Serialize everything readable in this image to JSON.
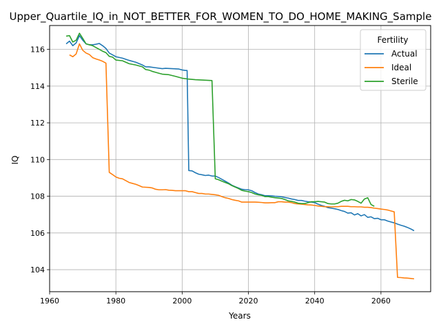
{
  "chart_data": {
    "type": "line",
    "title": "Upper_Quartile_IQ_in_NOT_BETTER_FOR_WOMEN_TO_DO_HOME_MAKING_Sample",
    "xlabel": "Years",
    "ylabel": "IQ",
    "xlim": [
      1960,
      2075
    ],
    "ylim": [
      102.8,
      117.3
    ],
    "xticks": [
      "1960",
      "1980",
      "2000",
      "2020",
      "2040",
      "2060"
    ],
    "yticks": [
      "104",
      "106",
      "108",
      "110",
      "112",
      "114",
      "116"
    ],
    "grid": true,
    "legend": {
      "title": "Fertility",
      "placement": "top-right"
    },
    "series": [
      {
        "name": "Actual",
        "color": "#1f77b4",
        "points": [
          [
            1965,
            116.3
          ],
          [
            1966,
            116.45
          ],
          [
            1967,
            116.2
          ],
          [
            1968,
            116.35
          ],
          [
            1969,
            116.75
          ],
          [
            1970,
            116.5
          ],
          [
            1971,
            116.3
          ],
          [
            1972,
            116.25
          ],
          [
            1973,
            116.25
          ],
          [
            1974,
            116.28
          ],
          [
            1975,
            116.32
          ],
          [
            1976,
            116.2
          ],
          [
            1977,
            116.05
          ],
          [
            1978,
            115.8
          ],
          [
            1979,
            115.7
          ],
          [
            1980,
            115.6
          ],
          [
            1982,
            115.52
          ],
          [
            1984,
            115.4
          ],
          [
            1986,
            115.3
          ],
          [
            1988,
            115.15
          ],
          [
            1989,
            115.05
          ],
          [
            1990,
            115.05
          ],
          [
            1992,
            115.0
          ],
          [
            1994,
            114.95
          ],
          [
            1995,
            114.97
          ],
          [
            1997,
            114.95
          ],
          [
            1999,
            114.93
          ],
          [
            2000,
            114.88
          ],
          [
            2001,
            114.85
          ],
          [
            2001.5,
            114.85
          ],
          [
            2002,
            109.4
          ],
          [
            2003,
            109.38
          ],
          [
            2004,
            109.28
          ],
          [
            2005,
            109.2
          ],
          [
            2006,
            109.17
          ],
          [
            2007,
            109.13
          ],
          [
            2008,
            109.15
          ],
          [
            2009,
            109.1
          ],
          [
            2010,
            109.1
          ],
          [
            2011,
            109.02
          ],
          [
            2012,
            108.92
          ],
          [
            2013,
            108.82
          ],
          [
            2014,
            108.72
          ],
          [
            2015,
            108.6
          ],
          [
            2016,
            108.52
          ],
          [
            2017,
            108.45
          ],
          [
            2018,
            108.38
          ],
          [
            2019,
            108.36
          ],
          [
            2020,
            108.35
          ],
          [
            2021,
            108.3
          ],
          [
            2022,
            108.2
          ],
          [
            2023,
            108.12
          ],
          [
            2024,
            108.08
          ],
          [
            2025,
            108.03
          ],
          [
            2026,
            108.03
          ],
          [
            2027,
            108.02
          ],
          [
            2028,
            108.0
          ],
          [
            2029,
            107.99
          ],
          [
            2030,
            107.97
          ],
          [
            2031,
            107.93
          ],
          [
            2032,
            107.9
          ],
          [
            2033,
            107.85
          ],
          [
            2034,
            107.82
          ],
          [
            2035,
            107.77
          ],
          [
            2036,
            107.77
          ],
          [
            2037,
            107.73
          ],
          [
            2038,
            107.7
          ],
          [
            2039,
            107.68
          ],
          [
            2040,
            107.65
          ],
          [
            2041,
            107.57
          ],
          [
            2042,
            107.5
          ],
          [
            2043,
            107.45
          ],
          [
            2044,
            107.38
          ],
          [
            2045,
            107.35
          ],
          [
            2046,
            107.32
          ],
          [
            2047,
            107.28
          ],
          [
            2048,
            107.22
          ],
          [
            2049,
            107.17
          ],
          [
            2050,
            107.08
          ],
          [
            2051,
            107.1
          ],
          [
            2052,
            106.98
          ],
          [
            2053,
            107.05
          ],
          [
            2054,
            106.93
          ],
          [
            2055,
            107.0
          ],
          [
            2056,
            106.85
          ],
          [
            2057,
            106.88
          ],
          [
            2058,
            106.78
          ],
          [
            2059,
            106.8
          ],
          [
            2060,
            106.72
          ],
          [
            2061,
            106.72
          ],
          [
            2062,
            106.65
          ],
          [
            2063,
            106.6
          ],
          [
            2064,
            106.55
          ],
          [
            2065,
            106.48
          ],
          [
            2066,
            106.42
          ],
          [
            2067,
            106.37
          ],
          [
            2068,
            106.3
          ],
          [
            2069,
            106.22
          ],
          [
            2070,
            106.12
          ]
        ]
      },
      {
        "name": "Ideal",
        "color": "#ff7f0e",
        "points": [
          [
            1966,
            115.7
          ],
          [
            1967,
            115.6
          ],
          [
            1968,
            115.75
          ],
          [
            1969,
            116.3
          ],
          [
            1970,
            115.95
          ],
          [
            1971,
            115.8
          ],
          [
            1972,
            115.72
          ],
          [
            1973,
            115.55
          ],
          [
            1974,
            115.48
          ],
          [
            1975,
            115.42
          ],
          [
            1976,
            115.35
          ],
          [
            1977,
            115.25
          ],
          [
            1978,
            109.3
          ],
          [
            1979,
            109.18
          ],
          [
            1980,
            109.05
          ],
          [
            1981,
            108.98
          ],
          [
            1982,
            108.95
          ],
          [
            1983,
            108.85
          ],
          [
            1984,
            108.75
          ],
          [
            1985,
            108.7
          ],
          [
            1986,
            108.65
          ],
          [
            1987,
            108.58
          ],
          [
            1988,
            108.5
          ],
          [
            1990,
            108.48
          ],
          [
            1991,
            108.45
          ],
          [
            1992,
            108.38
          ],
          [
            1993,
            108.35
          ],
          [
            1994,
            108.35
          ],
          [
            1995,
            108.36
          ],
          [
            1996,
            108.33
          ],
          [
            1997,
            108.32
          ],
          [
            1998,
            108.3
          ],
          [
            1999,
            108.3
          ],
          [
            2000,
            108.3
          ],
          [
            2001,
            108.3
          ],
          [
            2002,
            108.25
          ],
          [
            2003,
            108.25
          ],
          [
            2004,
            108.2
          ],
          [
            2005,
            108.15
          ],
          [
            2006,
            108.15
          ],
          [
            2007,
            108.12
          ],
          [
            2008,
            108.12
          ],
          [
            2009,
            108.1
          ],
          [
            2010,
            108.08
          ],
          [
            2011,
            108.05
          ],
          [
            2012,
            107.98
          ],
          [
            2013,
            107.92
          ],
          [
            2014,
            107.88
          ],
          [
            2015,
            107.82
          ],
          [
            2016,
            107.78
          ],
          [
            2017,
            107.75
          ],
          [
            2018,
            107.68
          ],
          [
            2019,
            107.68
          ],
          [
            2020,
            107.68
          ],
          [
            2021,
            107.68
          ],
          [
            2022,
            107.68
          ],
          [
            2023,
            107.67
          ],
          [
            2024,
            107.66
          ],
          [
            2025,
            107.64
          ],
          [
            2026,
            107.64
          ],
          [
            2027,
            107.65
          ],
          [
            2028,
            107.65
          ],
          [
            2029,
            107.7
          ],
          [
            2030,
            107.7
          ],
          [
            2031,
            107.68
          ],
          [
            2032,
            107.68
          ],
          [
            2033,
            107.65
          ],
          [
            2034,
            107.6
          ],
          [
            2035,
            107.58
          ],
          [
            2036,
            107.57
          ],
          [
            2037,
            107.55
          ],
          [
            2038,
            107.53
          ],
          [
            2039,
            107.52
          ],
          [
            2040,
            107.5
          ],
          [
            2041,
            107.47
          ],
          [
            2042,
            107.45
          ],
          [
            2043,
            107.43
          ],
          [
            2044,
            107.43
          ],
          [
            2045,
            107.42
          ],
          [
            2046,
            107.43
          ],
          [
            2047,
            107.43
          ],
          [
            2048,
            107.45
          ],
          [
            2049,
            107.45
          ],
          [
            2050,
            107.45
          ],
          [
            2051,
            107.43
          ],
          [
            2052,
            107.43
          ],
          [
            2053,
            107.42
          ],
          [
            2054,
            107.42
          ],
          [
            2055,
            107.4
          ],
          [
            2056,
            107.4
          ],
          [
            2057,
            107.38
          ],
          [
            2058,
            107.35
          ],
          [
            2059,
            107.33
          ],
          [
            2060,
            107.3
          ],
          [
            2061,
            107.28
          ],
          [
            2062,
            107.25
          ],
          [
            2063,
            107.2
          ],
          [
            2064,
            107.15
          ],
          [
            2065,
            103.58
          ],
          [
            2066,
            103.57
          ],
          [
            2067,
            103.55
          ],
          [
            2068,
            103.54
          ],
          [
            2069,
            103.52
          ],
          [
            2070,
            103.5
          ]
        ]
      },
      {
        "name": "Sterile",
        "color": "#2ca02c",
        "points": [
          [
            1965,
            116.72
          ],
          [
            1966,
            116.75
          ],
          [
            1967,
            116.4
          ],
          [
            1968,
            116.5
          ],
          [
            1969,
            116.88
          ],
          [
            1970,
            116.6
          ],
          [
            1971,
            116.3
          ],
          [
            1972,
            116.25
          ],
          [
            1973,
            116.2
          ],
          [
            1974,
            116.1
          ],
          [
            1975,
            116.0
          ],
          [
            1976,
            115.9
          ],
          [
            1977,
            115.82
          ],
          [
            1978,
            115.62
          ],
          [
            1979,
            115.58
          ],
          [
            1980,
            115.42
          ],
          [
            1982,
            115.38
          ],
          [
            1984,
            115.22
          ],
          [
            1986,
            115.15
          ],
          [
            1988,
            115.05
          ],
          [
            1989,
            114.9
          ],
          [
            1990,
            114.87
          ],
          [
            1991,
            114.8
          ],
          [
            1992,
            114.75
          ],
          [
            1993,
            114.7
          ],
          [
            1994,
            114.65
          ],
          [
            1996,
            114.62
          ],
          [
            1998,
            114.53
          ],
          [
            2000,
            114.43
          ],
          [
            2002,
            114.38
          ],
          [
            2004,
            114.35
          ],
          [
            2006,
            114.33
          ],
          [
            2008,
            114.31
          ],
          [
            2009,
            114.3
          ],
          [
            2010,
            108.95
          ],
          [
            2011,
            108.9
          ],
          [
            2012,
            108.82
          ],
          [
            2013,
            108.75
          ],
          [
            2014,
            108.68
          ],
          [
            2015,
            108.58
          ],
          [
            2016,
            108.5
          ],
          [
            2017,
            108.42
          ],
          [
            2018,
            108.32
          ],
          [
            2019,
            108.28
          ],
          [
            2020,
            108.25
          ],
          [
            2021,
            108.2
          ],
          [
            2022,
            108.12
          ],
          [
            2023,
            108.08
          ],
          [
            2024,
            108.05
          ],
          [
            2025,
            107.98
          ],
          [
            2026,
            107.98
          ],
          [
            2027,
            107.95
          ],
          [
            2028,
            107.92
          ],
          [
            2029,
            107.9
          ],
          [
            2030,
            107.88
          ],
          [
            2031,
            107.82
          ],
          [
            2032,
            107.75
          ],
          [
            2033,
            107.72
          ],
          [
            2034,
            107.68
          ],
          [
            2035,
            107.62
          ],
          [
            2036,
            107.6
          ],
          [
            2037,
            107.6
          ],
          [
            2038,
            107.65
          ],
          [
            2039,
            107.7
          ],
          [
            2040,
            107.7
          ],
          [
            2041,
            107.72
          ],
          [
            2042,
            107.7
          ],
          [
            2043,
            107.68
          ],
          [
            2044,
            107.6
          ],
          [
            2045,
            107.58
          ],
          [
            2046,
            107.58
          ],
          [
            2047,
            107.62
          ],
          [
            2048,
            107.72
          ],
          [
            2049,
            107.78
          ],
          [
            2050,
            107.75
          ],
          [
            2051,
            107.82
          ],
          [
            2052,
            107.8
          ],
          [
            2053,
            107.72
          ],
          [
            2054,
            107.62
          ],
          [
            2055,
            107.85
          ],
          [
            2056,
            107.92
          ],
          [
            2057,
            107.55
          ],
          [
            2058,
            107.45
          ]
        ]
      }
    ]
  }
}
